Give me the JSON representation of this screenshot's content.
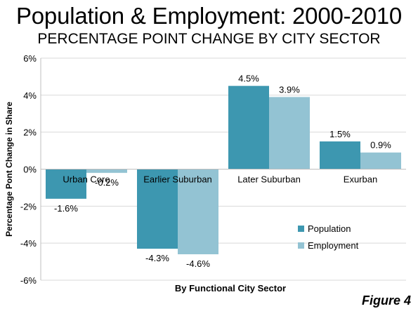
{
  "title": "Population & Employment: 2000-2010",
  "subtitle": "PERCENTAGE POINT CHANGE BY CITY SECTOR",
  "figure_label": "Figure 4",
  "chart_data": {
    "type": "bar",
    "categories": [
      "Urban Core",
      "Earlier Suburban",
      "Later Suburban",
      "Exurban"
    ],
    "series": [
      {
        "name": "Population",
        "values": [
          -1.6,
          -4.3,
          4.5,
          1.5
        ],
        "labels": [
          "-1.6%",
          "-4.3%",
          "4.5%",
          "1.5%"
        ],
        "color": "#3d97b0"
      },
      {
        "name": "Employment",
        "values": [
          -0.2,
          -4.6,
          3.9,
          0.9
        ],
        "labels": [
          "-0.2%",
          "-4.6%",
          "3.9%",
          "0.9%"
        ],
        "color": "#93c3d3"
      }
    ],
    "xlabel": "By Functional City Sector",
    "ylabel": "Percentage Pont Change in Share",
    "ylim": [
      -6,
      6
    ],
    "yticks": [
      6,
      4,
      2,
      0,
      -2,
      -4,
      -6
    ],
    "ytick_labels": [
      "6%",
      "4%",
      "2%",
      "0%",
      "-2%",
      "-4%",
      "-6%"
    ],
    "grid": true,
    "legend_position": "bottom-right"
  }
}
